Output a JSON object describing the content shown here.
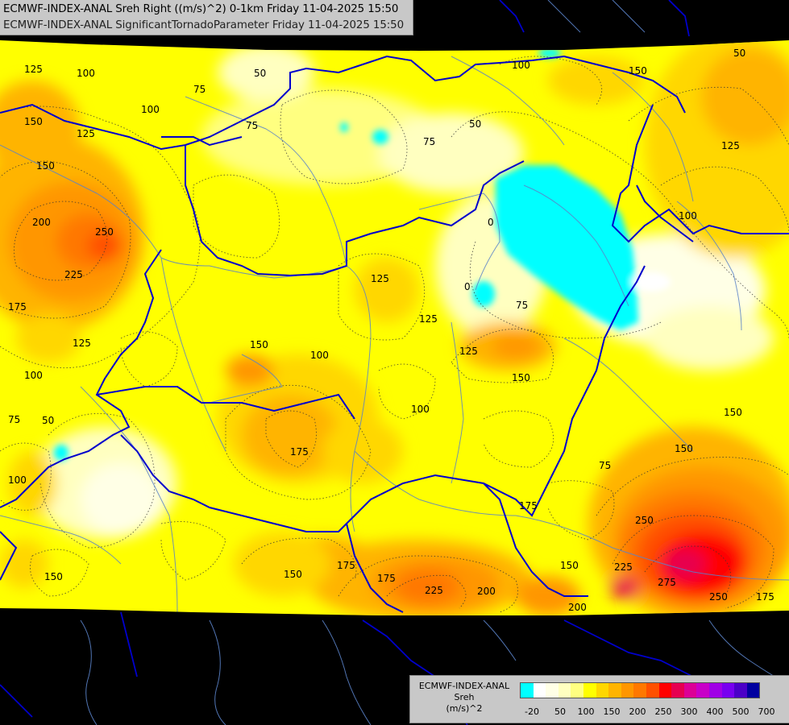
{
  "header": {
    "line1": "ECMWF-INDEX-ANAL Sreh Right ((m/s)^2) 0-1km Friday 11-04-2025 15:50",
    "line2": "ECMWF-INDEX-ANAL SignificantTornadoParameter Friday 11-04-2025 15:50"
  },
  "legend": {
    "title1": "ECMWF-INDEX-ANAL",
    "title2": "Sreh",
    "units": "(m/s)^2",
    "colors": [
      "#00ffff",
      "#ffffff",
      "#ffffe6",
      "#ffffc0",
      "#ffff80",
      "#ffff00",
      "#ffd700",
      "#ffb400",
      "#ff9600",
      "#ff7800",
      "#ff5000",
      "#ff0000",
      "#e60050",
      "#dc0096",
      "#c800c8",
      "#a000e6",
      "#7800f0",
      "#4b00c8",
      "#0000a0"
    ],
    "ticks": [
      "-20",
      "50",
      "100",
      "150",
      "200",
      "250",
      "300",
      "400",
      "500",
      "700"
    ]
  },
  "contour_labels": [
    "125",
    "100",
    "50",
    "75",
    "100",
    "150",
    "150",
    "125",
    "75",
    "150",
    "200",
    "250",
    "225",
    "175",
    "125",
    "100",
    "75",
    "50",
    "100",
    "150",
    "100",
    "75",
    "125",
    "50",
    "0",
    "75",
    "125",
    "125",
    "0",
    "100",
    "150",
    "125",
    "150",
    "100",
    "75",
    "175",
    "150",
    "150",
    "150",
    "175",
    "175",
    "225",
    "200",
    "200",
    "150",
    "225",
    "275",
    "250",
    "250",
    "175",
    "175",
    "100",
    "50"
  ],
  "colors": {
    "background": "#000000",
    "border": "#0000cc",
    "river": "#5a82c8",
    "panel": "#c8c8c8"
  }
}
